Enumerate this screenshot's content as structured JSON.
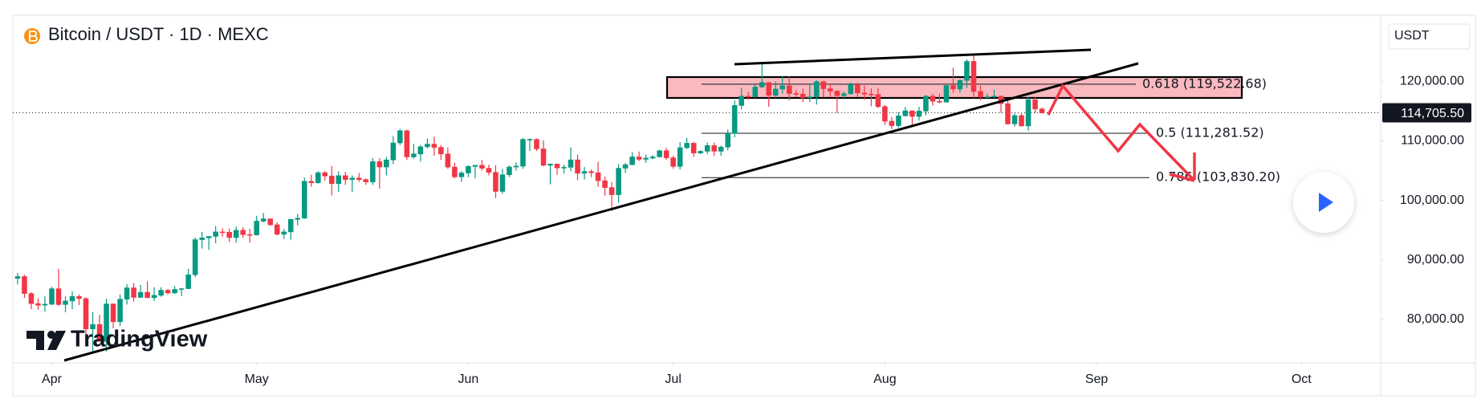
{
  "chart_data": {
    "type": "candlestick",
    "title": "Bitcoin / USDT · 1D · MEXC",
    "currency": "USDT",
    "watermark": "TradingView",
    "up_color": "#089981",
    "down_color": "#f23645",
    "grid": false,
    "ylim": [
      72700,
      131100
    ],
    "yticks": [
      {
        "value": 80000,
        "label": "80,000.00"
      },
      {
        "value": 90000,
        "label": "90,000.00"
      },
      {
        "value": 100000,
        "label": "100,000.00"
      },
      {
        "value": 110000,
        "label": "110,000.00"
      },
      {
        "value": 120000,
        "label": "120,000.00"
      }
    ],
    "xlim": [
      -5.7,
      194.6
    ],
    "xticks": [
      {
        "value": 0,
        "label": "Apr"
      },
      {
        "value": 30,
        "label": "May"
      },
      {
        "value": 61,
        "label": "Jun"
      },
      {
        "value": 91,
        "label": "Jul"
      },
      {
        "value": 122,
        "label": "Aug"
      },
      {
        "value": 153,
        "label": "Sep"
      },
      {
        "value": 183,
        "label": "Oct"
      }
    ],
    "last_price": {
      "value": 114705.5,
      "label": "114,705.50"
    },
    "fib_levels": [
      {
        "value": 119522.68,
        "label": "0.618 (119,522.68)"
      },
      {
        "value": 111281.52,
        "label": "0.5 (111,281.52)"
      },
      {
        "value": 103830.2,
        "label": "0.786 (103,830.20)"
      }
    ],
    "x": [
      -5,
      -4,
      -3,
      -2,
      -1,
      0,
      1,
      2,
      3,
      4,
      5,
      6,
      7,
      8,
      9,
      10,
      11,
      12,
      13,
      14,
      15,
      16,
      17,
      18,
      19,
      20,
      21,
      22,
      23,
      24,
      25,
      26,
      27,
      28,
      29,
      30,
      31,
      32,
      33,
      34,
      35,
      36,
      37,
      38,
      39,
      40,
      41,
      42,
      43,
      44,
      45,
      46,
      47,
      48,
      49,
      50,
      51,
      52,
      53,
      54,
      55,
      56,
      57,
      58,
      59,
      60,
      61,
      62,
      63,
      64,
      65,
      66,
      67,
      68,
      69,
      70,
      71,
      72,
      73,
      74,
      75,
      76,
      77,
      78,
      79,
      80,
      81,
      82,
      83,
      84,
      85,
      86,
      87,
      88,
      89,
      90,
      91,
      92,
      93,
      94,
      95,
      96,
      97,
      98,
      99,
      100,
      101,
      102,
      103,
      104,
      105,
      106,
      107,
      108,
      109,
      110,
      111,
      112,
      113,
      114,
      115,
      116,
      117,
      118,
      119,
      120,
      121,
      122,
      123,
      124,
      125,
      126,
      127,
      128,
      129,
      130,
      131,
      132,
      133,
      134,
      135,
      136,
      137,
      138,
      139,
      140,
      141,
      142,
      143,
      144,
      145
    ],
    "candles": [
      [
        86900,
        87800,
        85900,
        87200
      ],
      [
        87200,
        87500,
        83600,
        84350
      ],
      [
        84350,
        84600,
        81700,
        82650
      ],
      [
        82650,
        83500,
        81600,
        82390
      ],
      [
        82390,
        83900,
        81300,
        82550
      ],
      [
        82550,
        85500,
        82400,
        85160
      ],
      [
        85160,
        88500,
        82300,
        82500
      ],
      [
        82500,
        83900,
        81200,
        83100
      ],
      [
        83100,
        84700,
        81700,
        83850
      ],
      [
        83850,
        84200,
        82400,
        83500
      ],
      [
        83500,
        83700,
        77200,
        78400
      ],
      [
        78400,
        81200,
        74500,
        79150
      ],
      [
        79150,
        80800,
        76300,
        76300
      ],
      [
        76300,
        83500,
        74600,
        82600
      ],
      [
        82600,
        82700,
        78500,
        79600
      ],
      [
        79600,
        84200,
        78900,
        83400
      ],
      [
        83400,
        85900,
        82500,
        85300
      ],
      [
        85300,
        86100,
        83000,
        83700
      ],
      [
        83700,
        85800,
        83600,
        84550
      ],
      [
        84550,
        86400,
        83600,
        83650
      ],
      [
        83650,
        85400,
        83100,
        84050
      ],
      [
        84050,
        85400,
        83800,
        84900
      ],
      [
        84900,
        85100,
        84200,
        84450
      ],
      [
        84450,
        85600,
        84300,
        85050
      ],
      [
        85050,
        85300,
        83900,
        85170
      ],
      [
        85170,
        88500,
        85100,
        87500
      ],
      [
        87500,
        93800,
        87100,
        93400
      ],
      [
        93400,
        94700,
        91900,
        93700
      ],
      [
        93700,
        94000,
        91700,
        93950
      ],
      [
        93950,
        95700,
        92800,
        94700
      ],
      [
        94700,
        95300,
        93900,
        94650
      ],
      [
        94650,
        95300,
        93000,
        93750
      ],
      [
        93750,
        95600,
        92900,
        94980
      ],
      [
        94980,
        95500,
        93700,
        94250
      ],
      [
        94250,
        95200,
        92900,
        94200
      ],
      [
        94200,
        97400,
        94100,
        96500
      ],
      [
        96500,
        97900,
        96300,
        96900
      ],
      [
        96900,
        96900,
        95700,
        95900
      ],
      [
        95900,
        96300,
        94100,
        94300
      ],
      [
        94300,
        95200,
        93500,
        94700
      ],
      [
        94700,
        96900,
        93400,
        96800
      ],
      [
        96800,
        97700,
        95800,
        97000
      ],
      [
        97000,
        103800,
        96900,
        103200
      ],
      [
        103200,
        104300,
        102300,
        102950
      ],
      [
        102950,
        104900,
        102800,
        104650
      ],
      [
        104650,
        104900,
        103300,
        104100
      ],
      [
        104100,
        105800,
        100800,
        102800
      ],
      [
        102800,
        104900,
        101400,
        104150
      ],
      [
        104150,
        104800,
        102600,
        103500
      ],
      [
        103500,
        104200,
        101400,
        103750
      ],
      [
        103750,
        104600,
        103100,
        103500
      ],
      [
        103500,
        103700,
        102600,
        103100
      ],
      [
        103100,
        107100,
        102600,
        106500
      ],
      [
        106500,
        107100,
        102000,
        105600
      ],
      [
        105600,
        107300,
        104200,
        106800
      ],
      [
        106800,
        110800,
        106100,
        109650
      ],
      [
        109650,
        112000,
        109300,
        111700
      ],
      [
        111700,
        111900,
        106800,
        107300
      ],
      [
        107300,
        109500,
        107000,
        107800
      ],
      [
        107800,
        109300,
        106500,
        109000
      ],
      [
        109000,
        110400,
        108700,
        109450
      ],
      [
        109450,
        110700,
        107500,
        108900
      ],
      [
        108900,
        109300,
        106800,
        107800
      ],
      [
        107800,
        108900,
        105300,
        105600
      ],
      [
        105600,
        106300,
        103700,
        103950
      ],
      [
        103950,
        104900,
        103100,
        104600
      ],
      [
        104600,
        105900,
        103900,
        105700
      ],
      [
        105700,
        105900,
        103700,
        105900
      ],
      [
        105900,
        106800,
        105000,
        105400
      ],
      [
        105400,
        106000,
        104200,
        104700
      ],
      [
        104700,
        105900,
        100400,
        101500
      ],
      [
        101500,
        105300,
        101100,
        104300
      ],
      [
        104300,
        105900,
        103900,
        105600
      ],
      [
        105600,
        106400,
        105000,
        105750
      ],
      [
        105750,
        110500,
        105300,
        110250
      ],
      [
        110250,
        110400,
        108300,
        110250
      ],
      [
        110250,
        110400,
        108300,
        108650
      ],
      [
        108650,
        110100,
        105700,
        105900
      ],
      [
        105900,
        106200,
        102700,
        106100
      ],
      [
        106100,
        106200,
        104300,
        105450
      ],
      [
        105450,
        106000,
        104500,
        105550
      ],
      [
        105550,
        108900,
        104900,
        106800
      ],
      [
        106800,
        107700,
        103400,
        104550
      ],
      [
        104550,
        105600,
        103500,
        104850
      ],
      [
        104850,
        105200,
        103900,
        104650
      ],
      [
        104650,
        106500,
        102300,
        103300
      ],
      [
        103300,
        104000,
        100800,
        102150
      ],
      [
        102150,
        103100,
        98200,
        100950
      ],
      [
        100950,
        106100,
        99600,
        105400
      ],
      [
        105400,
        106300,
        104600,
        106000
      ],
      [
        106000,
        108100,
        105900,
        107300
      ],
      [
        107300,
        108200,
        106600,
        106900
      ],
      [
        106900,
        107700,
        106300,
        107100
      ],
      [
        107100,
        107600,
        106900,
        107300
      ],
      [
        107300,
        108500,
        107200,
        108350
      ],
      [
        108350,
        108800,
        106800,
        107150
      ],
      [
        107150,
        107500,
        105300,
        105700
      ],
      [
        105700,
        109800,
        105200,
        108850
      ],
      [
        108850,
        110500,
        108600,
        109600
      ],
      [
        109600,
        109800,
        107300,
        107950
      ],
      [
        107950,
        108400,
        107800,
        108250
      ],
      [
        108250,
        109700,
        107800,
        109200
      ],
      [
        109200,
        109700,
        107500,
        108250
      ],
      [
        108250,
        109200,
        107500,
        108950
      ],
      [
        108950,
        111900,
        108400,
        111250
      ],
      [
        111250,
        116800,
        110600,
        115950
      ],
      [
        115950,
        118900,
        115300,
        117500
      ],
      [
        117500,
        118200,
        116900,
        117400
      ],
      [
        117400,
        119500,
        117200,
        119050
      ],
      [
        119050,
        123200,
        118900,
        119800
      ],
      [
        119800,
        119900,
        115700,
        117650
      ],
      [
        117650,
        120000,
        117200,
        118700
      ],
      [
        118700,
        120900,
        117900,
        119250
      ],
      [
        119250,
        120800,
        116800,
        117950
      ],
      [
        117950,
        118500,
        117300,
        117850
      ],
      [
        117850,
        118800,
        116500,
        117250
      ],
      [
        117250,
        119700,
        116500,
        117400
      ],
      [
        117400,
        120200,
        116100,
        119950
      ],
      [
        119950,
        120100,
        117300,
        118750
      ],
      [
        118750,
        119500,
        117400,
        118350
      ],
      [
        118350,
        118500,
        114700,
        117600
      ],
      [
        117600,
        118300,
        117200,
        117900
      ],
      [
        117900,
        119800,
        117800,
        119450
      ],
      [
        119450,
        119800,
        117400,
        118050
      ],
      [
        118050,
        119300,
        116900,
        117850
      ],
      [
        117850,
        118800,
        115800,
        117800
      ],
      [
        117800,
        118900,
        115500,
        115750
      ],
      [
        115750,
        116000,
        112700,
        113300
      ],
      [
        113300,
        114000,
        112000,
        112550
      ],
      [
        112550,
        114800,
        112200,
        114200
      ],
      [
        114200,
        115700,
        114100,
        115050
      ],
      [
        115050,
        115100,
        112600,
        114100
      ],
      [
        114100,
        115700,
        113400,
        115000
      ],
      [
        115000,
        117700,
        114300,
        117500
      ],
      [
        117500,
        117900,
        115900,
        116650
      ],
      [
        116650,
        117900,
        116300,
        116500
      ],
      [
        116500,
        119300,
        116500,
        119300
      ],
      [
        119300,
        122300,
        118100,
        118700
      ],
      [
        118700,
        120300,
        118100,
        120150
      ],
      [
        120150,
        123700,
        118900,
        123350
      ],
      [
        123350,
        124500,
        117200,
        118300
      ],
      [
        118300,
        119300,
        116800,
        117350
      ],
      [
        117350,
        117900,
        117200,
        117400
      ],
      [
        117400,
        118600,
        117200,
        117500
      ],
      [
        117500,
        117600,
        114700,
        116250
      ],
      [
        116250,
        117000,
        112700,
        112850
      ],
      [
        112850,
        114600,
        112400,
        114250
      ],
      [
        114250,
        114800,
        112400,
        112500
      ],
      [
        112500,
        117400,
        111700,
        116900
      ],
      [
        116900,
        117400,
        114700,
        115350
      ],
      [
        115350,
        115600,
        114600,
        114705.5
      ]
    ]
  }
}
